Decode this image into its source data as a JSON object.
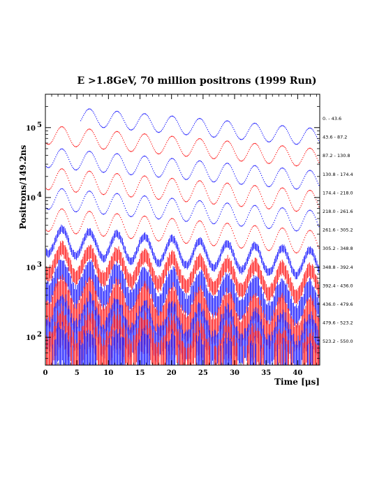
{
  "chart_data": {
    "type": "scatter",
    "title": "E >1.8GeV, 70 million positrons (1999 Run)",
    "xlabel": "Time [μs]",
    "ylabel": "Positrons/149.2ns",
    "xlim": [
      0,
      43.5
    ],
    "ylim": [
      40,
      300000
    ],
    "log_y": true,
    "x_ticks": [
      "0",
      "5",
      "10",
      "15",
      "20",
      "25",
      "30",
      "35",
      "40"
    ],
    "y_ticks": [
      {
        "value": 100,
        "base": "10",
        "exp": "2"
      },
      {
        "value": 1000,
        "base": "10",
        "exp": "3"
      },
      {
        "value": 10000,
        "base": "10",
        "exp": "4"
      },
      {
        "value": 100000,
        "base": "10",
        "exp": "5"
      }
    ],
    "grid": false,
    "legend": "right",
    "period_us": 4.37,
    "series": [
      {
        "name": "0. - 43.6",
        "color": "#0000ff",
        "x_start": 5.6,
        "peak": 210000,
        "trough": 118000
      },
      {
        "name": "43.6 - 87.2",
        "color": "#ff0000",
        "x_start": 0.0,
        "peak": 108000,
        "trough": 58000
      },
      {
        "name": "87.2 - 130.8",
        "color": "#0000ff",
        "x_start": 0.0,
        "peak": 52000,
        "trough": 27000
      },
      {
        "name": "130.8 - 174.4",
        "color": "#ff0000",
        "x_start": 0.0,
        "peak": 27000,
        "trough": 13000
      },
      {
        "name": "174.4 - 218.0",
        "color": "#0000ff",
        "x_start": 0.0,
        "peak": 14000,
        "trough": 6800
      },
      {
        "name": "218.0 - 261.6",
        "color": "#ff0000",
        "x_start": 0.0,
        "peak": 7200,
        "trough": 3300
      },
      {
        "name": "261.6 - 305.2",
        "color": "#0000ff",
        "x_start": 0.0,
        "peak": 3700,
        "trough": 1600
      },
      {
        "name": "305.2 - 348.8",
        "color": "#ff0000",
        "x_start": 0.0,
        "peak": 1900,
        "trough": 800
      },
      {
        "name": "348.8 - 392.4",
        "color": "#0000ff",
        "x_start": 0.0,
        "peak": 1000,
        "trough": 420
      },
      {
        "name": "392.4 - 436.0",
        "color": "#ff0000",
        "x_start": 0.0,
        "peak": 520,
        "trough": 210
      },
      {
        "name": "436.0 - 479.6",
        "color": "#0000ff",
        "x_start": 0.0,
        "peak": 270,
        "trough": 110
      },
      {
        "name": "479.6 - 523.2",
        "color": "#ff0000",
        "x_start": 0.0,
        "peak": 150,
        "trough": 60
      },
      {
        "name": "523.2 - 550.0",
        "color": "#0000ff",
        "x_start": 0.0,
        "peak": 85,
        "trough": 34
      }
    ]
  }
}
